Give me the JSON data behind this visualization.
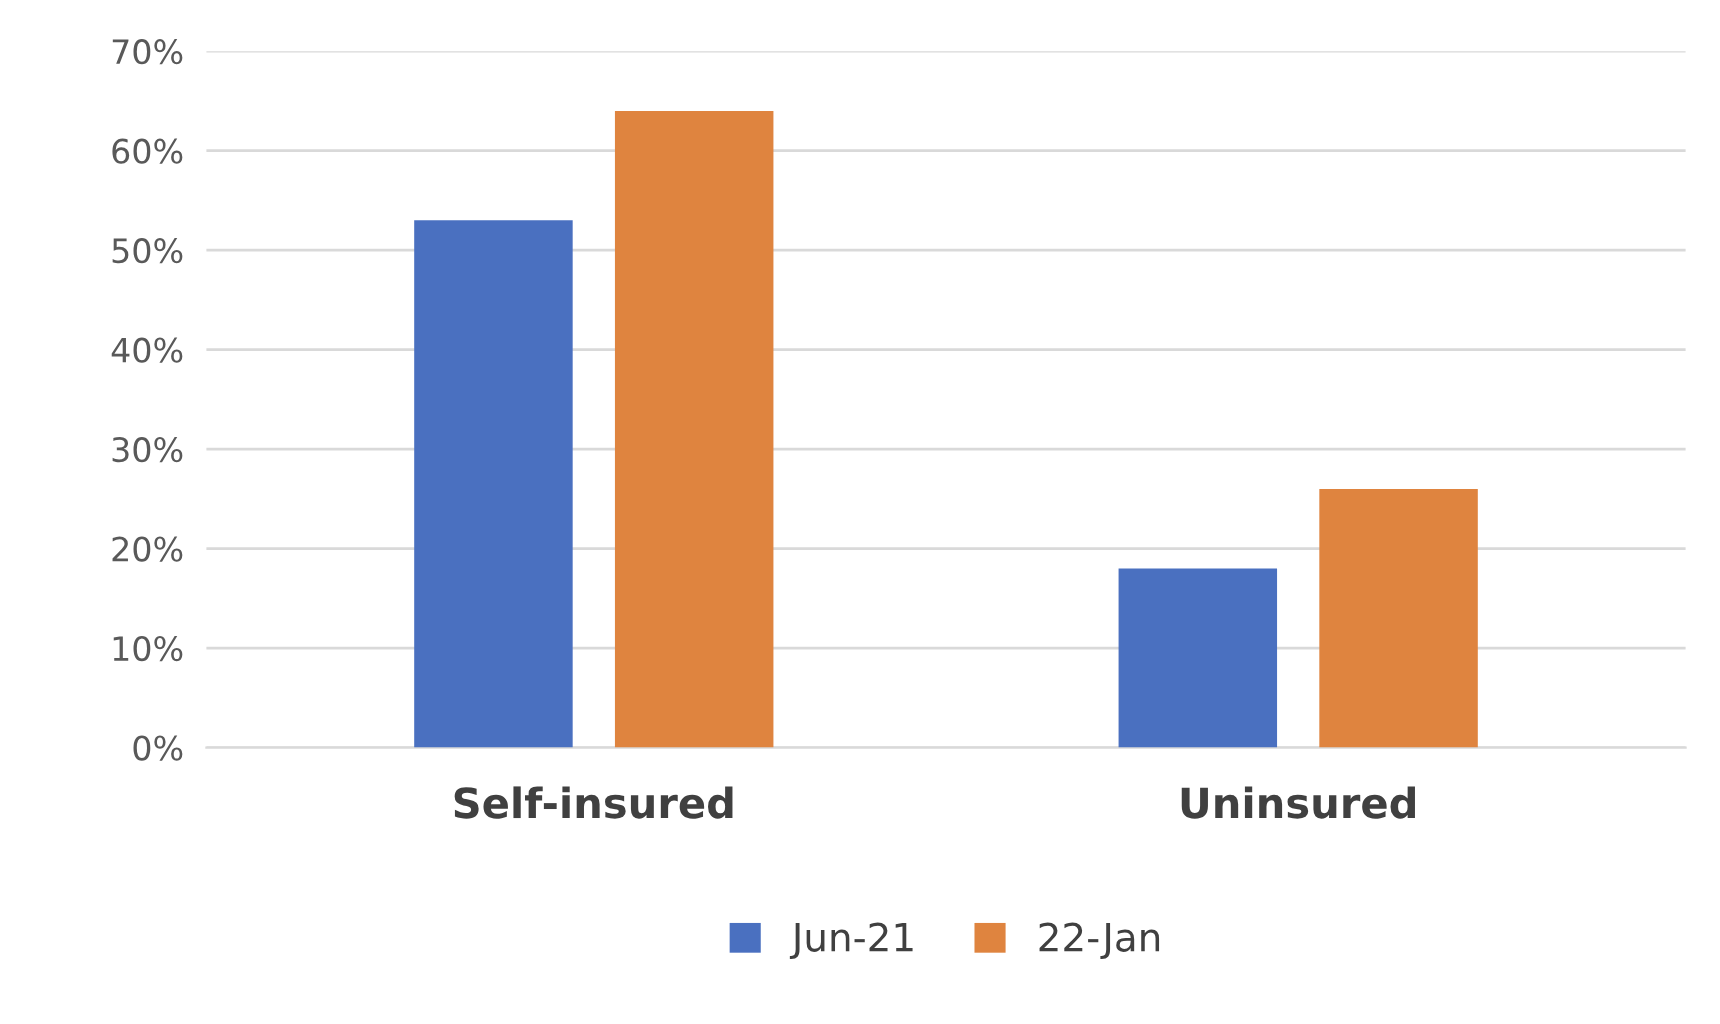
{
  "chart_data": {
    "type": "bar",
    "categories": [
      "Self-insured",
      "Uninsured"
    ],
    "series": [
      {
        "name": "Jun-21",
        "color": "#4a70c0",
        "values": [
          53,
          18
        ]
      },
      {
        "name": "22-Jan",
        "color": "#df843f",
        "values": [
          64,
          26
        ]
      }
    ],
    "ylim": [
      0,
      70
    ],
    "yticks": [
      {
        "value": 0,
        "label": "0%"
      },
      {
        "value": 10,
        "label": "10%"
      },
      {
        "value": 20,
        "label": "20%"
      },
      {
        "value": 30,
        "label": "30%"
      },
      {
        "value": 40,
        "label": "40%"
      },
      {
        "value": 50,
        "label": "50%"
      },
      {
        "value": 60,
        "label": "60%"
      },
      {
        "value": 70,
        "label": "70%"
      }
    ],
    "grid": "y",
    "legend": "bottom"
  }
}
